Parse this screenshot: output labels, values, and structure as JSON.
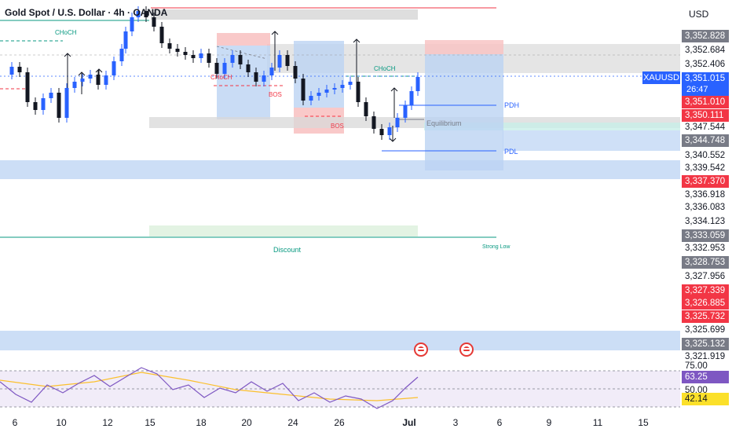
{
  "header": {
    "title": "Gold Spot / U.S. Dollar · 4h · OANDA",
    "currency": "USD"
  },
  "symbol_tag": "XAUUSD",
  "countdown": "26:47",
  "price_axis": [
    {
      "value": "3,352.828",
      "style": "grey"
    },
    {
      "value": "3,352.684",
      "style": "plain"
    },
    {
      "value": "3,352.406",
      "style": "plain"
    },
    {
      "value": "3,351.015",
      "style": "blue"
    },
    {
      "value": "3,351.010",
      "style": "red"
    },
    {
      "value": "3,350.111",
      "style": "red"
    },
    {
      "value": "3,347.544",
      "style": "plain"
    },
    {
      "value": "3,344.748",
      "style": "grey"
    },
    {
      "value": "3,340.552",
      "style": "plain"
    },
    {
      "value": "3,339.542",
      "style": "plain"
    },
    {
      "value": "3,337.370",
      "style": "red"
    },
    {
      "value": "3,336.918",
      "style": "plain"
    },
    {
      "value": "3,336.083",
      "style": "plain"
    },
    {
      "value": "3,334.123",
      "style": "plain"
    },
    {
      "value": "3,333.059",
      "style": "grey"
    },
    {
      "value": "3,332.953",
      "style": "plain"
    },
    {
      "value": "3,328.753",
      "style": "grey"
    },
    {
      "value": "3,327.956",
      "style": "plain"
    },
    {
      "value": "3,327.339",
      "style": "red"
    },
    {
      "value": "3,326.885",
      "style": "red"
    },
    {
      "value": "3,325.732",
      "style": "red"
    },
    {
      "value": "3,325.699",
      "style": "plain"
    },
    {
      "value": "3,325.132",
      "style": "grey"
    },
    {
      "value": "3,321.919",
      "style": "plain"
    }
  ],
  "rsi_axis": [
    {
      "value": "75.00",
      "style": "plain"
    },
    {
      "value": "63.25",
      "style": "purple"
    },
    {
      "value": "50.00",
      "style": "plain"
    },
    {
      "value": "42.14",
      "style": "yellow"
    }
  ],
  "time_axis": [
    {
      "label": "6",
      "bold": false
    },
    {
      "label": "10",
      "bold": false
    },
    {
      "label": "12",
      "bold": false
    },
    {
      "label": "15",
      "bold": false
    },
    {
      "label": "18",
      "bold": false
    },
    {
      "label": "20",
      "bold": false
    },
    {
      "label": "24",
      "bold": false
    },
    {
      "label": "26",
      "bold": false
    },
    {
      "label": "Jul",
      "bold": true
    },
    {
      "label": "3",
      "bold": false
    },
    {
      "label": "6",
      "bold": false
    },
    {
      "label": "9",
      "bold": false
    },
    {
      "label": "11",
      "bold": false
    },
    {
      "label": "15",
      "bold": false
    }
  ],
  "annotations": {
    "choch_1": "CHoCH",
    "choch_2": "CHoCH",
    "choch_3": "CHoCH",
    "bos_1": "BOS",
    "bos_2": "BOS",
    "pdh": "PDH",
    "pdl": "PDL",
    "equilibrium": "Equilibrium",
    "discount": "Discount",
    "strong_low": "Strong Low"
  },
  "colors": {
    "bull": "#2962ff",
    "bear": "#131722",
    "red": "#f23645",
    "green": "#089981",
    "rsi_line": "#7e57c2",
    "rsi_ma": "#fbc02d"
  }
}
